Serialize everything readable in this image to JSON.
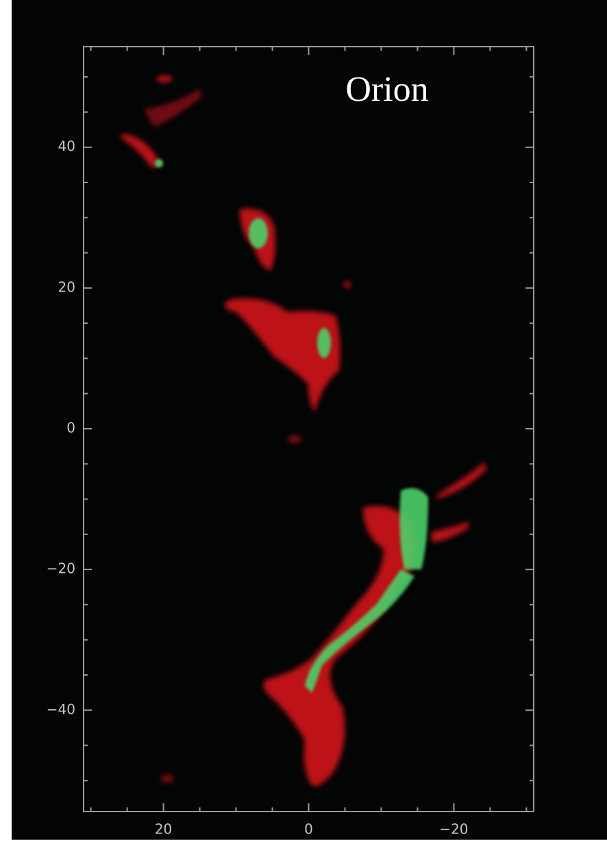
{
  "chart_data": {
    "type": "image",
    "title": "Orion",
    "xlim": [
      31,
      -31
    ],
    "xticks": [
      20,
      0,
      {
        "value": -20,
        "label": "−20"
      }
    ],
    "xminorticks": [
      30,
      25,
      15,
      10,
      5,
      -5,
      -10,
      -15,
      -25,
      -30
    ],
    "ylim": [
      54.3,
      -54.4
    ],
    "yticks": [
      40,
      20,
      0,
      {
        "value": -20,
        "label": "−20"
      },
      {
        "value": -40,
        "label": "−40"
      }
    ],
    "yminorticks": [
      50,
      45,
      35,
      30,
      25,
      15,
      10,
      5,
      -5,
      -10,
      -15,
      -25,
      -30,
      -35,
      -45,
      -50
    ]
  }
}
